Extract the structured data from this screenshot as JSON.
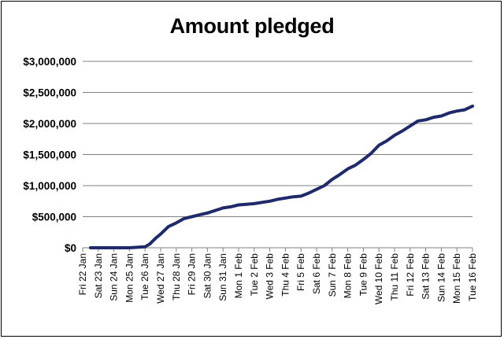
{
  "chart_data": {
    "type": "line",
    "title": "Amount pledged",
    "xlabel": "",
    "ylabel": "",
    "ylim": [
      0,
      3000000
    ],
    "yticks": [
      0,
      500000,
      1000000,
      1500000,
      2000000,
      2500000,
      3000000
    ],
    "ytick_labels": [
      "$0",
      "$500,000",
      "$1,000,000",
      "$1,500,000",
      "$2,000,000",
      "$2,500,000",
      "$3,000,000"
    ],
    "categories": [
      "Fri 22 Jan",
      "Sat 23 Jan",
      "Sun 24 Jan",
      "Mon 25 Jan",
      "Tue 26 Jan",
      "Wed 27 Jan",
      "Thu 28 Jan",
      "Fri 29 Jan",
      "Sat 30 Jan",
      "Sun 31 Jan",
      "Mon 1 Feb",
      "Tue 2 Feb",
      "Wed 3 Feb",
      "Thu 4 Feb",
      "Fri 5 Feb",
      "Sat 6 Feb",
      "Sun 7 Feb",
      "Mon 8 Feb",
      "Tue 9 Feb",
      "Wed 10 Feb",
      "Thu 11 Feb",
      "Fri 12 Feb",
      "Sat 13 Feb",
      "Sun 14 Feb",
      "Mon 15 Feb",
      "Tue 16 Feb"
    ],
    "grid": true,
    "line_color": "#1f2a6b",
    "series": [
      {
        "x": [
          0.5,
          1,
          2,
          3,
          4,
          4.3,
          4.7,
          5,
          5.5,
          6,
          6.5,
          7,
          7.5,
          8,
          8.5,
          9,
          9.5,
          10,
          10.5,
          11,
          11.5,
          12,
          12.5,
          13,
          13.5,
          14,
          14.5,
          15,
          15.5,
          16,
          16.5,
          17,
          17.5,
          18,
          18.5,
          19,
          19.5,
          20,
          20.5,
          21,
          21.5,
          22,
          22.5,
          23,
          23.5,
          24,
          24.5,
          25
        ],
        "values": [
          0,
          0,
          0,
          0,
          15000,
          60000,
          160000,
          220000,
          340000,
          400000,
          470000,
          500000,
          530000,
          560000,
          600000,
          640000,
          660000,
          690000,
          700000,
          710000,
          730000,
          750000,
          780000,
          800000,
          820000,
          830000,
          880000,
          940000,
          1000000,
          1100000,
          1180000,
          1270000,
          1330000,
          1420000,
          1520000,
          1650000,
          1720000,
          1810000,
          1880000,
          1960000,
          2040000,
          2060000,
          2100000,
          2120000,
          2170000,
          2200000,
          2220000,
          2280000
        ]
      }
    ]
  }
}
